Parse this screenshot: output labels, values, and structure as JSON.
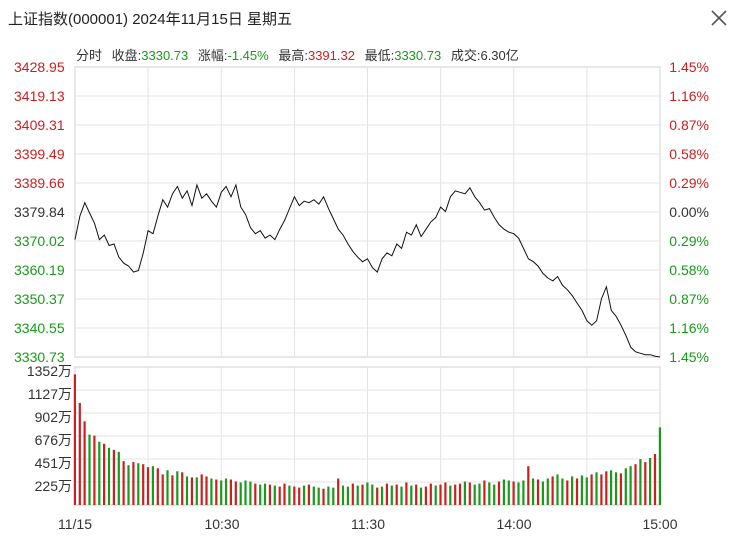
{
  "window": {
    "title": "上证指数(000001) 2024年11月15日 星期五"
  },
  "info_bar": {
    "tab": "分时",
    "close_label": "收盘:",
    "close_value": "3330.73",
    "change_label": "涨幅:",
    "change_value": "-1.45%",
    "high_label": "最高:",
    "high_value": "3391.32",
    "low_label": "最低:",
    "low_value": "3330.73",
    "amount_label": "成交:",
    "amount_value": "6.30亿"
  },
  "colors": {
    "up": "#cc1f1f",
    "down": "#1a9a1a",
    "line": "#111111",
    "grid": "#e3e3e3"
  },
  "chart_data": [
    {
      "type": "line",
      "ylim": [
        3330.73,
        3428.95
      ],
      "y_ticks": [
        "3428.95",
        "3419.13",
        "3409.31",
        "3399.49",
        "3389.66",
        "3379.84",
        "3370.02",
        "3360.19",
        "3350.37",
        "3340.55",
        "3330.73"
      ],
      "y_tick_colors": [
        "up",
        "up",
        "up",
        "up",
        "up",
        "neutral",
        "down",
        "down",
        "down",
        "down",
        "down"
      ],
      "right_ticks": [
        "1.45%",
        "1.16%",
        "0.87%",
        "0.58%",
        "0.29%",
        "0.00%",
        "0.29%",
        "0.58%",
        "0.87%",
        "1.16%",
        "1.45%"
      ],
      "x_ticks": [
        "11/15",
        "10:30",
        "11:30",
        "14:00",
        "15:00"
      ],
      "x": [
        0,
        2,
        4,
        6,
        8,
        10,
        12,
        14,
        16,
        18,
        20,
        22,
        24,
        26,
        28,
        30,
        32,
        34,
        36,
        38,
        40,
        42,
        44,
        46,
        48,
        50,
        52,
        54,
        56,
        58,
        60,
        62,
        64,
        66,
        68,
        70,
        72,
        74,
        76,
        78,
        80,
        82,
        84,
        86,
        88,
        90,
        92,
        94,
        96,
        98,
        100,
        102,
        104,
        106,
        108,
        110,
        112,
        114,
        116,
        118,
        120,
        122,
        124,
        126,
        128,
        130,
        132,
        134,
        136,
        138,
        140,
        142,
        144,
        146,
        148,
        150,
        152,
        154,
        156,
        158,
        160,
        162,
        164,
        166,
        168,
        170,
        172,
        174,
        176,
        178,
        180,
        182,
        184,
        186,
        188,
        190,
        192,
        194,
        196,
        198,
        200,
        202,
        204,
        206,
        208,
        210,
        212,
        214,
        216,
        218,
        220,
        222,
        224,
        226,
        228,
        230,
        232,
        234,
        236,
        238,
        240
      ],
      "values": [
        3370.5,
        3378.5,
        3383.0,
        3379.5,
        3376.0,
        3370.5,
        3372.0,
        3368.5,
        3369.0,
        3364.5,
        3362.5,
        3361.5,
        3359.5,
        3360.0,
        3366.0,
        3373.5,
        3372.5,
        3378.5,
        3384.0,
        3381.5,
        3386.0,
        3388.5,
        3384.5,
        3387.0,
        3382.0,
        3389.0,
        3384.5,
        3386.0,
        3383.5,
        3381.5,
        3386.5,
        3388.5,
        3385.0,
        3389.0,
        3381.5,
        3379.0,
        3374.5,
        3372.5,
        3373.5,
        3371.0,
        3372.0,
        3370.5,
        3374.0,
        3377.0,
        3381.0,
        3385.0,
        3382.0,
        3383.5,
        3383.0,
        3384.0,
        3382.5,
        3385.0,
        3381.0,
        3377.5,
        3374.0,
        3372.0,
        3369.0,
        3366.5,
        3364.5,
        3363.0,
        3364.0,
        3361.0,
        3359.5,
        3364.0,
        3366.0,
        3365.0,
        3369.0,
        3367.5,
        3373.0,
        3372.0,
        3375.5,
        3371.5,
        3374.0,
        3376.5,
        3378.0,
        3381.5,
        3380.0,
        3385.0,
        3387.0,
        3386.5,
        3386.0,
        3388.0,
        3385.0,
        3383.0,
        3380.5,
        3381.0,
        3378.0,
        3375.5,
        3374.0,
        3373.0,
        3372.5,
        3371.0,
        3367.5,
        3364.0,
        3363.0,
        3361.5,
        3359.0,
        3357.5,
        3356.5,
        3358.0,
        3355.0,
        3353.5,
        3351.5,
        3349.0,
        3346.5,
        3343.0,
        3341.5,
        3343.0,
        3350.5,
        3354.5,
        3346.5,
        3344.5,
        3341.5,
        3338.0,
        3334.0,
        3332.5,
        3332.0,
        3331.5,
        3331.5,
        3331.0,
        3330.73
      ]
    },
    {
      "type": "bar",
      "ylim": [
        0,
        1352
      ],
      "y_ticks": [
        "1352万",
        "1127万",
        "902万",
        "676万",
        "451万",
        "225万"
      ],
      "volume": [
        1280,
        1000,
        820,
        690,
        680,
        620,
        600,
        560,
        540,
        520,
        430,
        390,
        420,
        410,
        400,
        370,
        380,
        360,
        300,
        340,
        290,
        330,
        320,
        280,
        270,
        270,
        300,
        280,
        260,
        250,
        240,
        260,
        250,
        230,
        220,
        240,
        230,
        210,
        200,
        210,
        200,
        190,
        180,
        210,
        190,
        180,
        170,
        190,
        200,
        180,
        170,
        160,
        180,
        170,
        260,
        190,
        180,
        210,
        190,
        200,
        220,
        200,
        170,
        180,
        210,
        190,
        200,
        180,
        220,
        190,
        200,
        170,
        180,
        210,
        190,
        200,
        220,
        190,
        200,
        210,
        230,
        220,
        200,
        210,
        240,
        220,
        200,
        230,
        250,
        240,
        230,
        220,
        240,
        380,
        260,
        250,
        230,
        260,
        280,
        300,
        260,
        240,
        280,
        260,
        290,
        270,
        300,
        320,
        300,
        330,
        340,
        320,
        310,
        360,
        380,
        400,
        450,
        420,
        460,
        500,
        760
      ],
      "volume_dir": [
        "up",
        "up",
        "up",
        "down",
        "up",
        "down",
        "up",
        "down",
        "up",
        "down",
        "up",
        "down",
        "up",
        "down",
        "up",
        "up",
        "down",
        "up",
        "up",
        "down",
        "up",
        "down",
        "up",
        "down",
        "up",
        "down",
        "up",
        "up",
        "down",
        "up",
        "down",
        "down",
        "up",
        "up",
        "down",
        "down",
        "down",
        "up",
        "down",
        "down",
        "up",
        "down",
        "up",
        "up",
        "down",
        "up",
        "up",
        "down",
        "up",
        "down",
        "down",
        "up",
        "down",
        "down",
        "up",
        "down",
        "down",
        "up",
        "down",
        "up",
        "down",
        "down",
        "up",
        "down",
        "up",
        "down",
        "up",
        "down",
        "up",
        "down",
        "up",
        "down",
        "up",
        "up",
        "down",
        "up",
        "up",
        "down",
        "up",
        "up",
        "down",
        "up",
        "down",
        "down",
        "up",
        "down",
        "down",
        "up",
        "down",
        "down",
        "up",
        "down",
        "down",
        "up",
        "down",
        "up",
        "down",
        "down",
        "up",
        "down",
        "down",
        "up",
        "down",
        "up",
        "down",
        "down",
        "up",
        "down",
        "up",
        "up",
        "down",
        "down",
        "up",
        "down",
        "down",
        "up",
        "down",
        "up",
        "down",
        "up",
        "down"
      ]
    }
  ]
}
